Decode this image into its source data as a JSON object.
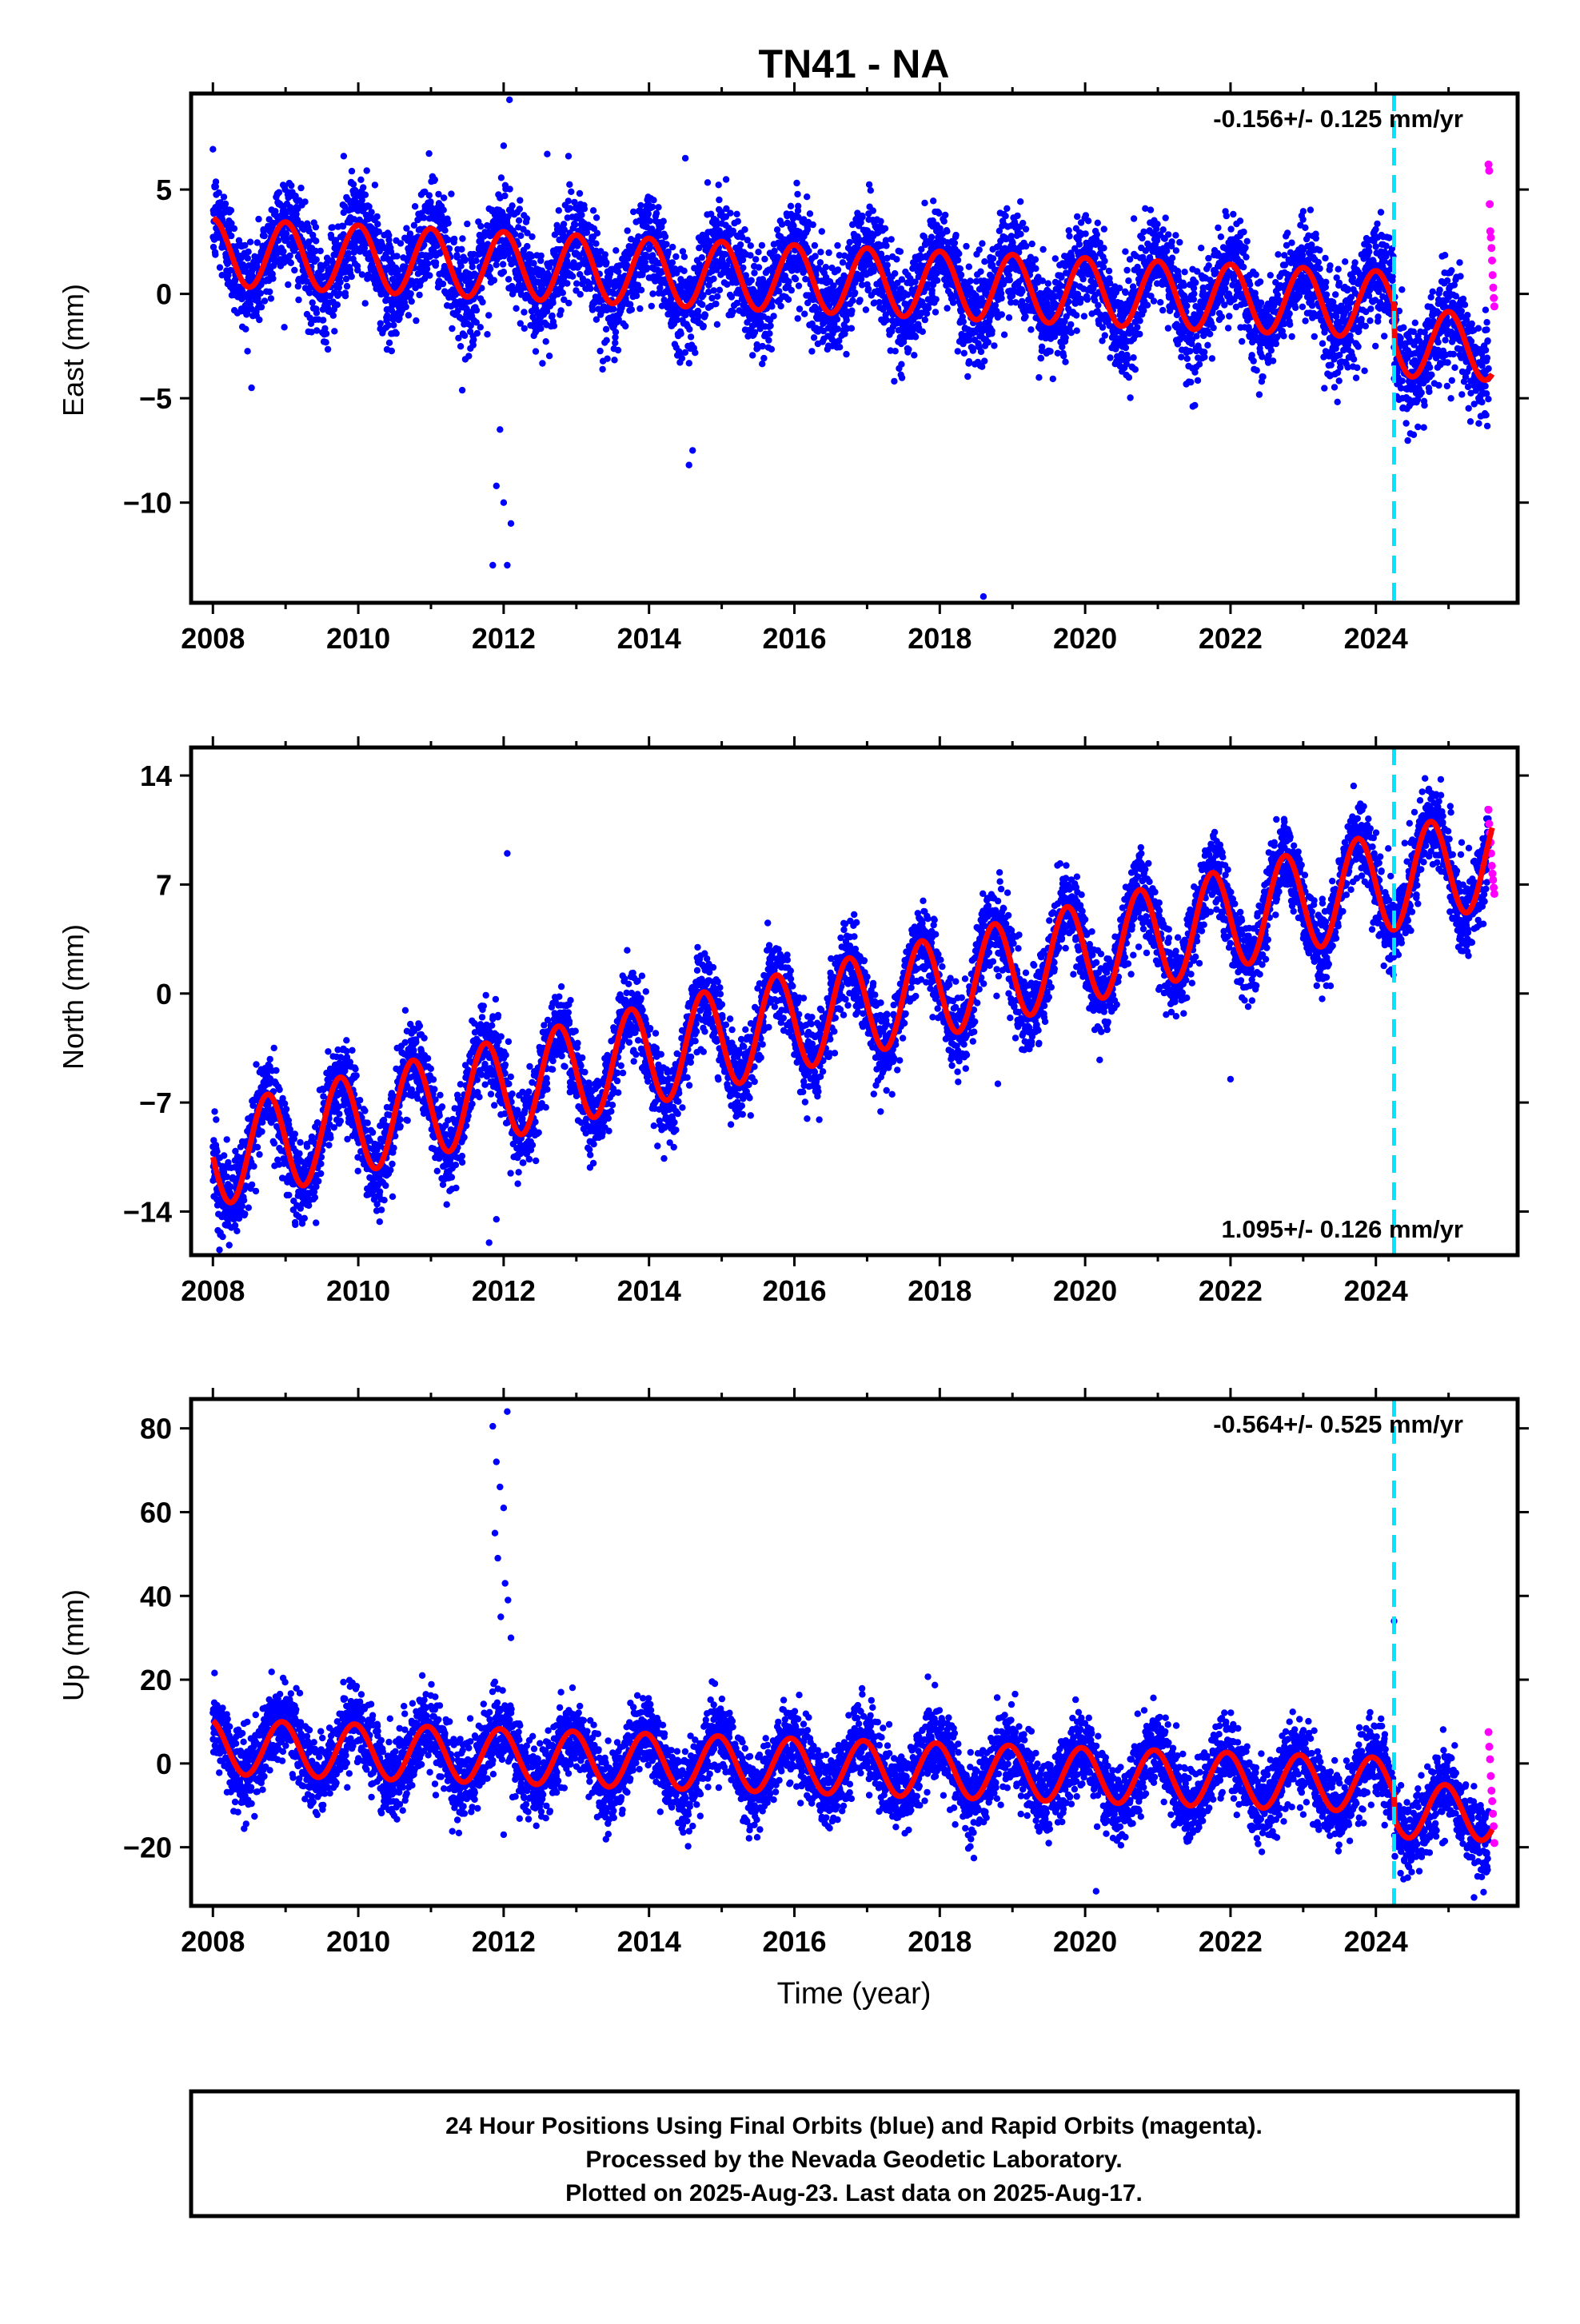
{
  "chart_data": {
    "type": "scatter",
    "title": "TN41 - NA",
    "xlabel": "Time (year)",
    "xlim": [
      2007.7,
      2025.95
    ],
    "xticks": [
      2008,
      2010,
      2012,
      2014,
      2016,
      2018,
      2020,
      2022,
      2024
    ],
    "event_line_year": 2024.25,
    "colors": {
      "final": "#0000ff",
      "rapid": "#ff00ff",
      "model": "#ff0000",
      "event_line": "#00e5ff"
    },
    "panels": [
      {
        "id": "east",
        "ylabel": "East (mm)",
        "ylim": [
          -14.8,
          9.6
        ],
        "yticks": [
          5,
          0,
          -5,
          -10
        ],
        "ytick_labels": [
          "5",
          "0",
          "−5",
          "−10"
        ],
        "rate_text": "-0.156+/- 0.125 mm/yr",
        "rate_position": "top-right",
        "model": {
          "offset": 2.0,
          "trend": -0.156,
          "amplitude": 1.6,
          "phase_year": 0.75,
          "jump": -1.8,
          "scatter": 1.2
        },
        "final_range": [
          2008.0,
          2025.55
        ],
        "rapid_range": [
          2025.55,
          2025.63
        ],
        "rapid_y": [
          6.2,
          5.9,
          4.3,
          3.0,
          2.7,
          2.2,
          1.6,
          0.9,
          0.3,
          -0.2,
          -0.6
        ],
        "outliers": [
          [
            2011.85,
            -13.0
          ],
          [
            2011.9,
            -9.2
          ],
          [
            2011.95,
            -6.5
          ],
          [
            2012.0,
            -10.0
          ],
          [
            2012.05,
            -13.0
          ],
          [
            2012.1,
            -11.0
          ],
          [
            2012.08,
            9.3
          ],
          [
            2012.0,
            7.1
          ],
          [
            2014.55,
            -8.2
          ],
          [
            2014.6,
            -7.5
          ],
          [
            2018.6,
            -14.5
          ],
          [
            2012.6,
            6.7
          ],
          [
            2009.8,
            6.6
          ],
          [
            2014.5,
            6.5
          ]
        ]
      },
      {
        "id": "north",
        "ylabel": "North (mm)",
        "ylim": [
          -16.8,
          15.8
        ],
        "yticks": [
          14,
          7,
          0,
          -7,
          -14
        ],
        "ytick_labels": [
          "14",
          "7",
          "0",
          "−7",
          "−14"
        ],
        "rate_text": "1.095+/- 0.126 mm/yr",
        "rate_position": "bottom-right",
        "model": {
          "offset": -10.5,
          "trend": 1.095,
          "amplitude": 3.2,
          "phase_year": 0.5,
          "jump": 0,
          "scatter": 1.3
        },
        "final_range": [
          2008.0,
          2025.55
        ],
        "rapid_range": [
          2025.55,
          2025.63
        ],
        "rapid_y": [
          11.8,
          10.9,
          10.3,
          9.7,
          9.0,
          8.2,
          7.7,
          7.3,
          6.8,
          6.4
        ],
        "outliers": [
          [
            2012.05,
            9.0
          ],
          [
            2011.8,
            -16.0
          ],
          [
            2011.9,
            -14.5
          ],
          [
            2022.0,
            -5.5
          ],
          [
            2018.8,
            -5.8
          ]
        ]
      },
      {
        "id": "up",
        "ylabel": "Up (mm)",
        "ylim": [
          -34,
          87
        ],
        "yticks": [
          80,
          60,
          40,
          20,
          0,
          -20
        ],
        "ytick_labels": [
          "80",
          "60",
          "40",
          "20",
          "0",
          "−20"
        ],
        "rate_text": "-0.564+/- 0.525 mm/yr",
        "rate_position": "top-right",
        "model": {
          "offset": 4.0,
          "trend": -0.564,
          "amplitude": 6.5,
          "phase_year": 0.7,
          "jump": -6.0,
          "scatter": 4.5
        },
        "final_range": [
          2008.0,
          2025.55
        ],
        "rapid_range": [
          2025.55,
          2025.63
        ],
        "rapid_y": [
          7.5,
          4.0,
          1.0,
          -3.0,
          -6.5,
          -9.0,
          -12.0,
          -15.0,
          -19.0
        ],
        "outliers": [
          [
            2011.85,
            80.5
          ],
          [
            2011.9,
            72.0
          ],
          [
            2011.95,
            66.0
          ],
          [
            2012.0,
            61.0
          ],
          [
            2012.05,
            84.0
          ],
          [
            2011.88,
            55.0
          ],
          [
            2011.92,
            49.0
          ],
          [
            2012.02,
            43.0
          ],
          [
            2012.06,
            39.0
          ],
          [
            2011.96,
            35.0
          ],
          [
            2012.1,
            30.0
          ],
          [
            2012.0,
            -17.0
          ],
          [
            2024.25,
            34.0
          ],
          [
            2025.35,
            -32.0
          ],
          [
            2020.15,
            -30.5
          ]
        ]
      }
    ],
    "footer_lines": [
      "24 Hour Positions Using Final Orbits (blue) and Rapid Orbits (magenta).",
      "Processed by the Nevada Geodetic Laboratory.",
      "Plotted on 2025-Aug-23. Last data on 2025-Aug-17."
    ]
  }
}
